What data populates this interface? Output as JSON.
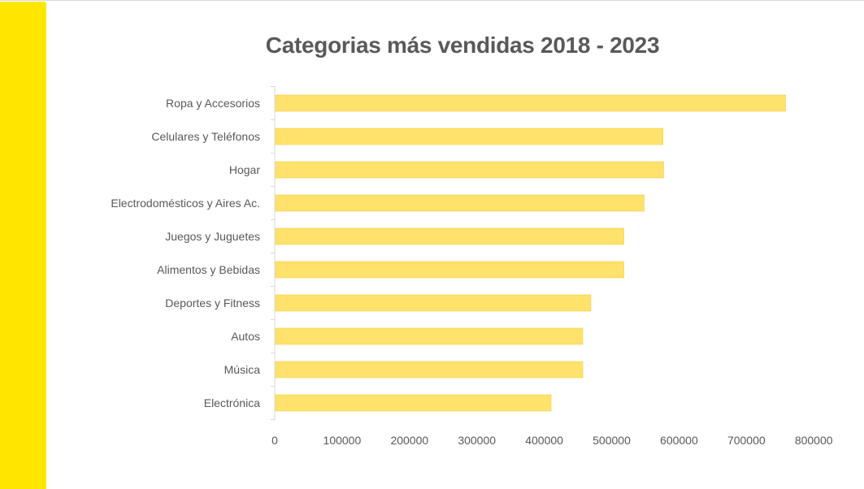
{
  "colors": {
    "accent": "#ffe600",
    "bar": "#ffe26b",
    "text": "#595959",
    "axis": "#d9d9d9"
  },
  "chart_data": {
    "type": "bar",
    "orientation": "horizontal",
    "title": "Categorias más vendidas 2018 - 2023",
    "xlabel": "",
    "ylabel": "",
    "categories": [
      "Ropa y Accesorios",
      "Celulares y Teléfonos",
      "Hogar",
      "Electrodomésticos y Aires Ac.",
      "Juegos y Juguetes",
      "Alimentos y Bebidas",
      "Deportes y Fitness",
      "Autos",
      "Música",
      "Electrónica"
    ],
    "values": [
      757000,
      575000,
      576000,
      547000,
      517000,
      517000,
      468000,
      456000,
      456000,
      409000
    ],
    "xlim": [
      0,
      800000
    ],
    "ticks": [
      "0",
      "100000",
      "200000",
      "300000",
      "400000",
      "500000",
      "600000",
      "700000",
      "800000"
    ],
    "grid": false,
    "legend": "none"
  }
}
